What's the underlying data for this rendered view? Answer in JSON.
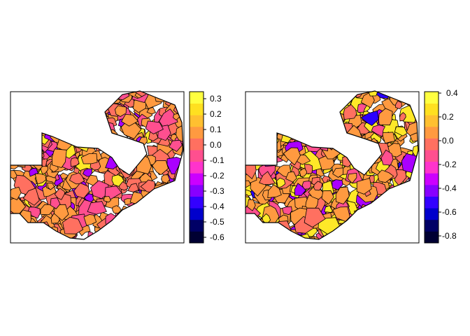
{
  "maps": [
    {
      "name": "left-map",
      "legend": {
        "ticks": [
          "0.3",
          "0.2",
          "0.1",
          "0.0",
          "-0.1",
          "-0.2",
          "-0.3",
          "-0.4",
          "-0.5",
          "-0.6"
        ],
        "range": [
          -0.65,
          0.35
        ]
      },
      "fill_distribution": {
        "orange": 0.5,
        "salmon": 0.3,
        "pink": 0.12,
        "purple": 0.06,
        "yellow": 0.02
      }
    },
    {
      "name": "right-map",
      "legend": {
        "ticks": [
          "0.4",
          "0.2",
          "0.0",
          "-0.2",
          "-0.4",
          "-0.6",
          "-0.8"
        ],
        "range": [
          -0.85,
          0.42
        ]
      },
      "fill_distribution": {
        "yellow": 0.25,
        "orange": 0.45,
        "salmon": 0.15,
        "pink": 0.08,
        "purple": 0.05,
        "blue": 0.02
      }
    }
  ],
  "palette": [
    "#000033",
    "#000066",
    "#0000cc",
    "#3300ff",
    "#8800ff",
    "#cc00ff",
    "#ff33cc",
    "#ff4f8f",
    "#ff7060",
    "#ff9a40",
    "#ffc030",
    "#ffe020",
    "#ffff40"
  ],
  "legend_bands": 13,
  "border_color": "#000000"
}
